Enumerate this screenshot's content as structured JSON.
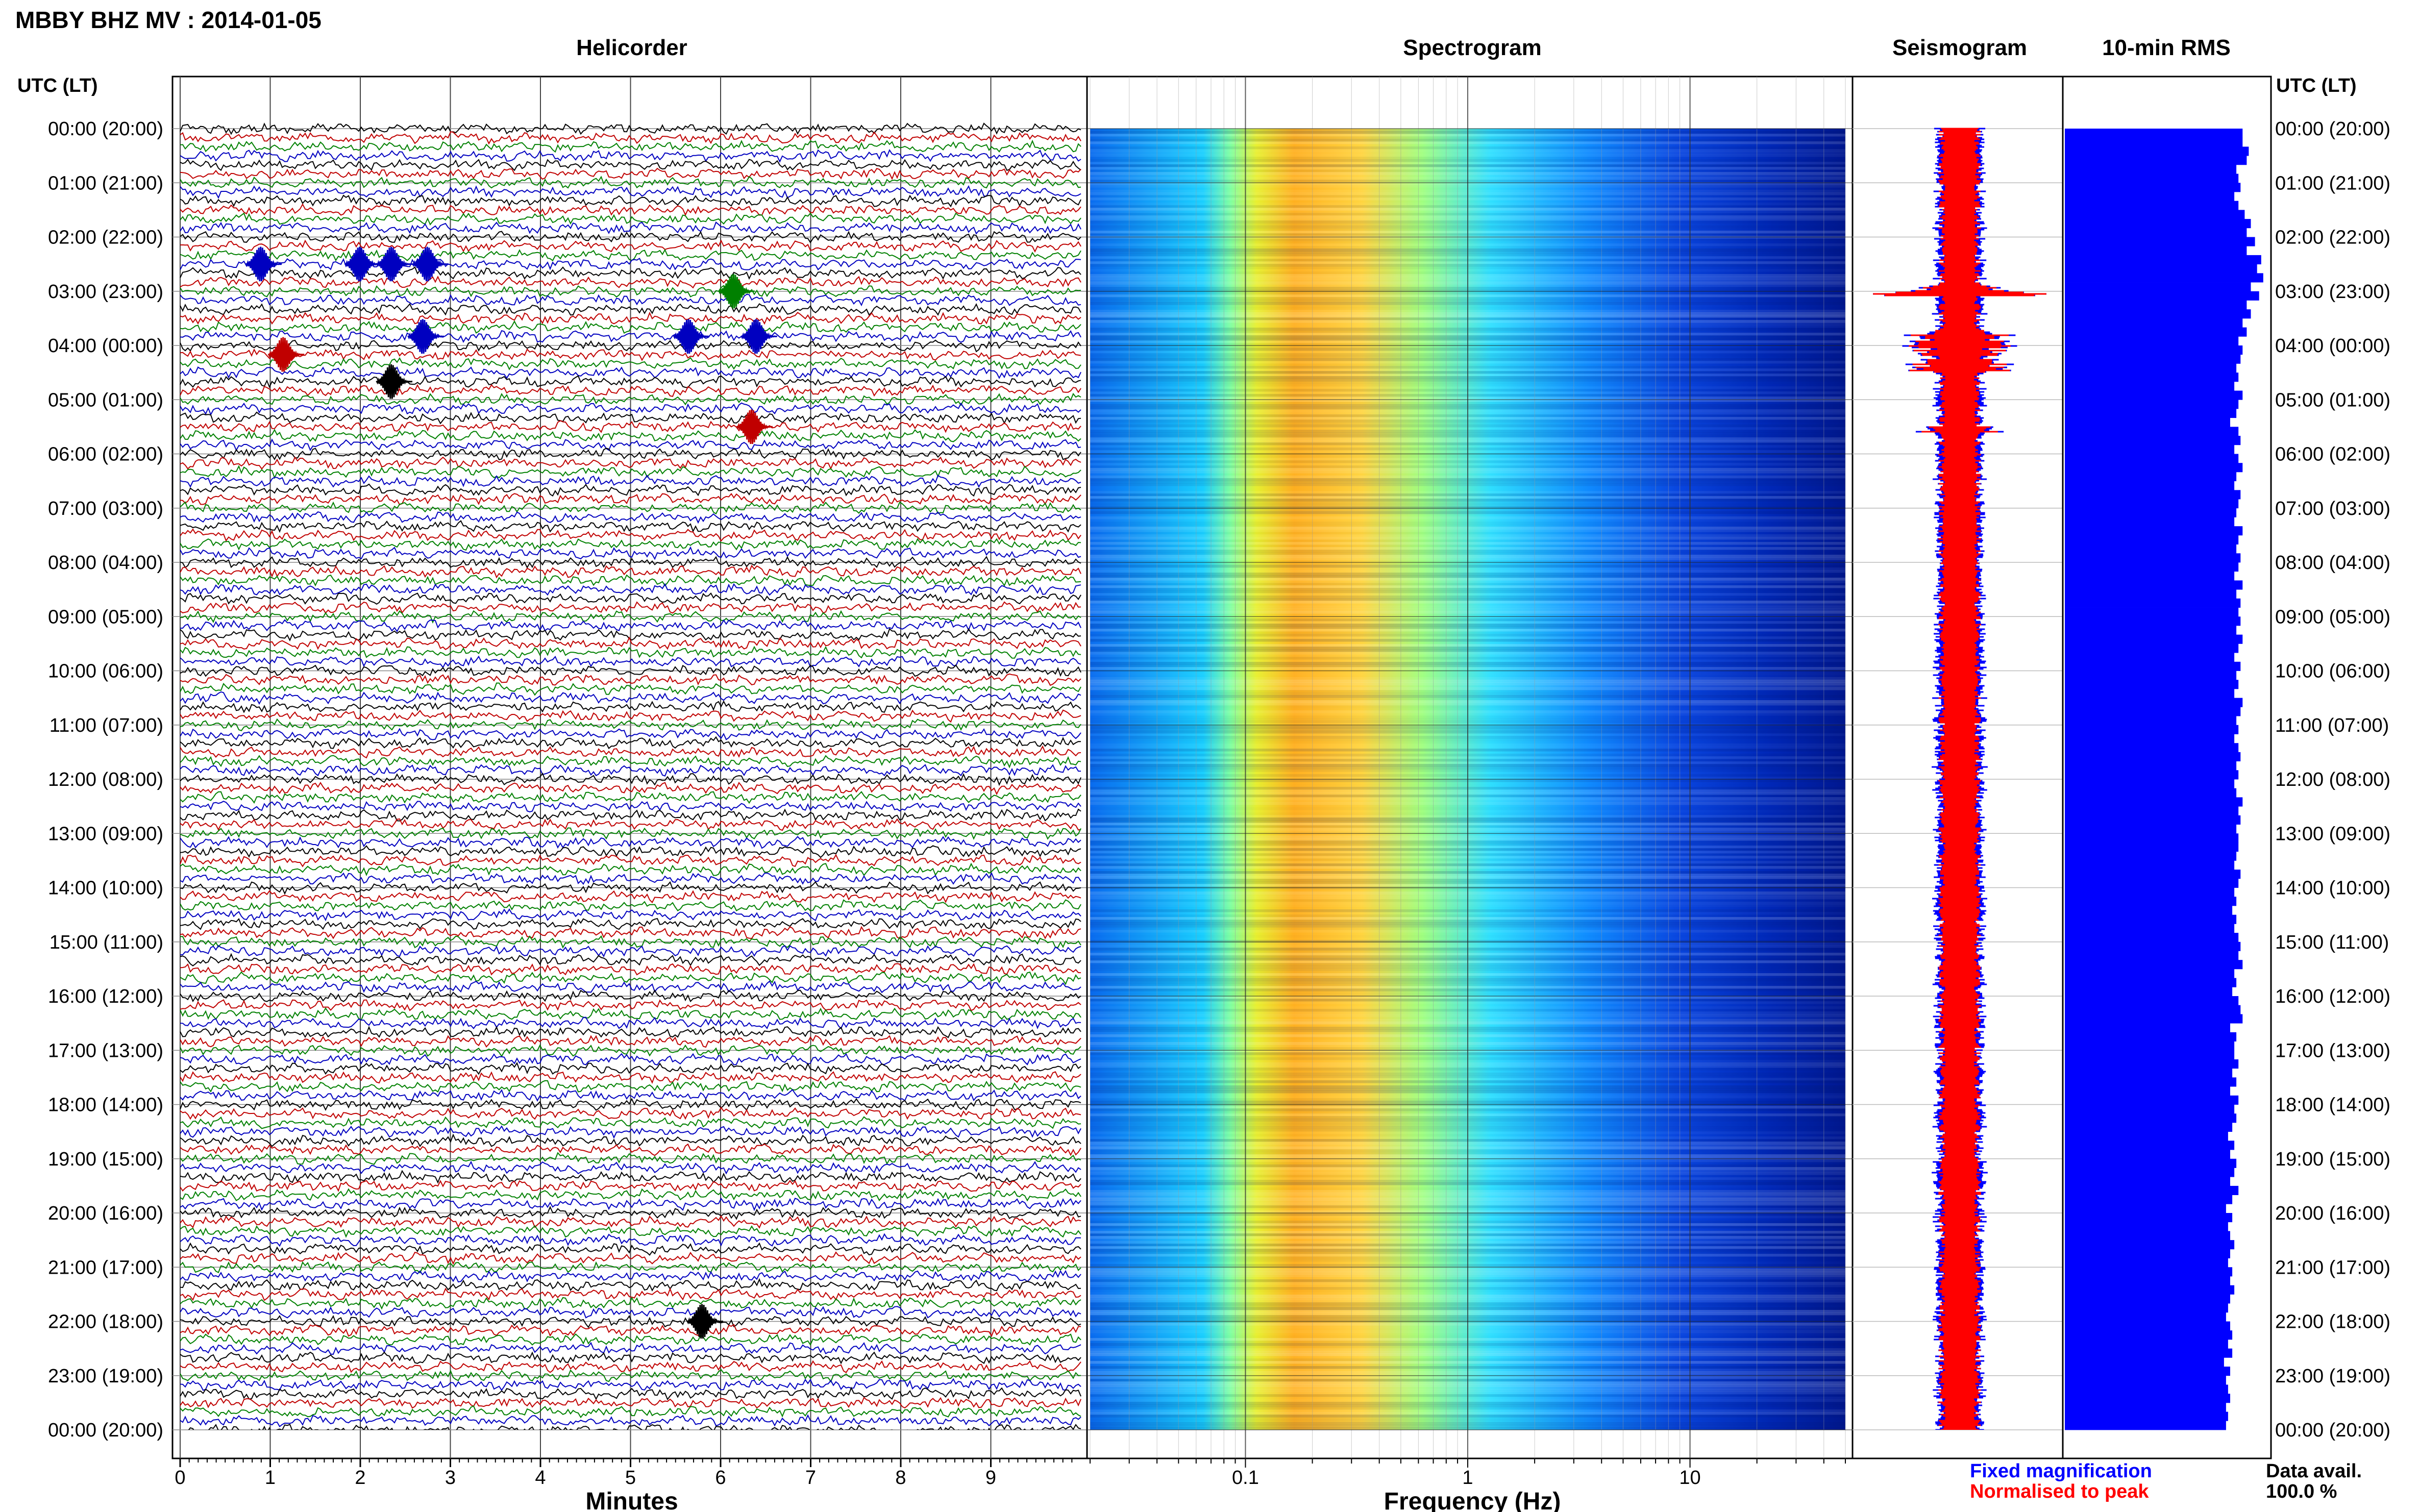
{
  "header": {
    "station_title": "MBBY BHZ MV : 2014-01-05",
    "left_time_header": "UTC (LT)",
    "right_time_header": "UTC (LT)"
  },
  "panels": {
    "helicorder": {
      "title": "Helicorder",
      "xlabel": "Minutes"
    },
    "spectrogram": {
      "title": "Spectrogram",
      "xlabel": "Frequency (Hz)"
    },
    "seismogram": {
      "title": "Seismogram"
    },
    "rms": {
      "title": "10-min RMS"
    }
  },
  "legend": {
    "fixed_magnification": "Fixed magnification",
    "normalised_to_peak": "Normalised to peak"
  },
  "data_availability": {
    "label": "Data avail.",
    "value": "100.0 %"
  },
  "colors": {
    "trace_cycle": [
      "#000000",
      "#c00000",
      "#008000",
      "#0000c0"
    ],
    "rms_bar": "#0000ff",
    "seismogram_fixed": "#0000ff",
    "seismogram_normalised": "#ff0000",
    "spectrogram_colormap": [
      "#00007f",
      "#0000ff",
      "#00bfff",
      "#40ffc0",
      "#c0ff40",
      "#ffd000",
      "#ff6000"
    ]
  },
  "chart_data": {
    "type": "heatmap",
    "time_ticks": [
      "00:00 (20:00)",
      "01:00 (21:00)",
      "02:00 (22:00)",
      "03:00 (23:00)",
      "04:00 (00:00)",
      "05:00 (01:00)",
      "06:00 (02:00)",
      "07:00 (03:00)",
      "08:00 (04:00)",
      "09:00 (05:00)",
      "10:00 (06:00)",
      "11:00 (07:00)",
      "12:00 (08:00)",
      "13:00 (09:00)",
      "14:00 (10:00)",
      "15:00 (11:00)",
      "16:00 (12:00)",
      "17:00 (13:00)",
      "18:00 (14:00)",
      "19:00 (15:00)",
      "20:00 (16:00)",
      "21:00 (17:00)",
      "22:00 (18:00)",
      "23:00 (19:00)",
      "00:00 (20:00)"
    ],
    "helicorder": {
      "x_ticks": [
        "0",
        "1",
        "2",
        "3",
        "4",
        "5",
        "6",
        "7",
        "8",
        "9"
      ],
      "xlim": [
        0,
        10
      ],
      "lines_per_hour": 6,
      "events": [
        {
          "hour": 2.5,
          "minute": 0.9
        },
        {
          "hour": 2.5,
          "minute": 2.0
        },
        {
          "hour": 2.5,
          "minute": 2.35
        },
        {
          "hour": 2.5,
          "minute": 2.75
        },
        {
          "hour": 3.0,
          "minute": 6.15
        },
        {
          "hour": 3.8,
          "minute": 2.7
        },
        {
          "hour": 3.8,
          "minute": 5.65
        },
        {
          "hour": 3.8,
          "minute": 6.4
        },
        {
          "hour": 4.2,
          "minute": 1.15
        },
        {
          "hour": 4.6,
          "minute": 2.35
        },
        {
          "hour": 5.5,
          "minute": 6.35
        },
        {
          "hour": 22.0,
          "minute": 5.8
        }
      ]
    },
    "spectrogram": {
      "x_scale": "log",
      "xlim": [
        0.02,
        50
      ],
      "x_ticks": [
        "0.1",
        "1",
        "10"
      ],
      "peak_band_hz": [
        0.18,
        0.4
      ]
    },
    "rms": {
      "interval_minutes": 10,
      "values_percent": [
        86,
        86,
        89,
        88,
        83,
        84,
        85,
        82,
        84,
        87,
        90,
        88,
        92,
        88,
        95,
        93,
        96,
        90,
        94,
        88,
        90,
        86,
        88,
        84,
        86,
        85,
        83,
        84,
        82,
        86,
        84,
        83,
        80,
        84,
        85,
        82,
        84,
        86,
        83,
        82,
        85,
        84,
        83,
        82,
        86,
        84,
        83,
        85,
        84,
        82,
        86,
        83,
        85,
        84,
        85,
        83,
        86,
        84,
        82,
        85,
        83,
        84,
        82,
        86,
        85,
        83,
        84,
        82,
        84,
        85,
        83,
        84,
        82,
        83,
        86,
        84,
        85,
        83,
        84,
        84,
        83,
        82,
        85,
        84,
        82,
        83,
        81,
        83,
        82,
        84,
        85,
        84,
        86,
        82,
        83,
        81,
        84,
        85,
        86,
        80,
        83,
        82,
        82,
        84,
        81,
        83,
        80,
        84,
        82,
        83,
        81,
        79,
        82,
        80,
        83,
        82,
        80,
        84,
        81,
        78,
        81,
        79,
        80,
        82,
        80,
        79,
        81,
        80,
        82,
        80,
        79,
        78,
        80,
        81,
        79,
        81,
        77,
        80,
        78,
        79,
        80,
        78,
        79,
        78
      ]
    }
  }
}
